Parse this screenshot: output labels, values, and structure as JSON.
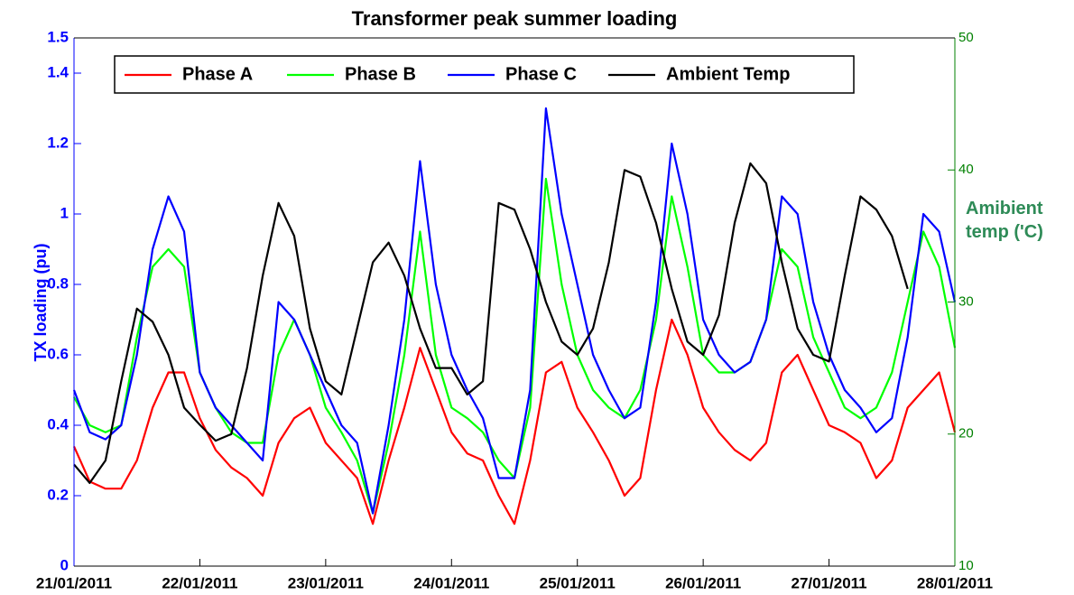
{
  "chart_data": {
    "type": "line",
    "title": "Transformer peak summer loading",
    "ylabel": "TX loading (pu)",
    "y2label": "Amibient temp ('C)",
    "x": [
      0,
      0.125,
      0.25,
      0.375,
      0.5,
      0.625,
      0.75,
      0.875,
      1,
      1.125,
      1.25,
      1.375,
      1.5,
      1.625,
      1.75,
      1.875,
      2,
      2.125,
      2.25,
      2.375,
      2.5,
      2.625,
      2.75,
      2.875,
      3,
      3.125,
      3.25,
      3.375,
      3.5,
      3.625,
      3.75,
      3.875,
      4,
      4.125,
      4.25,
      4.375,
      4.5,
      4.625,
      4.75,
      4.875,
      5,
      5.125,
      5.25,
      5.375,
      5.5,
      5.625,
      5.75,
      5.875,
      6,
      6.125,
      6.25,
      6.375,
      6.5,
      6.625,
      6.75,
      6.875,
      7
    ],
    "series": [
      {
        "name": "Phase A",
        "color": "#ff0000",
        "values": [
          0.34,
          0.24,
          0.22,
          0.22,
          0.3,
          0.45,
          0.55,
          0.55,
          0.42,
          0.33,
          0.28,
          0.25,
          0.2,
          0.35,
          0.42,
          0.45,
          0.35,
          0.3,
          0.25,
          0.12,
          0.3,
          0.45,
          0.62,
          0.5,
          0.38,
          0.32,
          0.3,
          0.2,
          0.12,
          0.3,
          0.55,
          0.58,
          0.45,
          0.38,
          0.3,
          0.2,
          0.25,
          0.5,
          0.7,
          0.6,
          0.45,
          0.38,
          0.33,
          0.3,
          0.35,
          0.55,
          0.6,
          0.5,
          0.4,
          0.38,
          0.35,
          0.25,
          0.3,
          0.45,
          0.5,
          0.55,
          0.38
        ]
      },
      {
        "name": "Phase B",
        "color": "#00ff00",
        "values": [
          0.48,
          0.4,
          0.38,
          0.4,
          0.65,
          0.85,
          0.9,
          0.85,
          0.55,
          0.45,
          0.38,
          0.35,
          0.35,
          0.6,
          0.7,
          0.6,
          0.45,
          0.38,
          0.3,
          0.15,
          0.35,
          0.6,
          0.95,
          0.6,
          0.45,
          0.42,
          0.38,
          0.3,
          0.25,
          0.45,
          1.1,
          0.8,
          0.6,
          0.5,
          0.45,
          0.42,
          0.5,
          0.7,
          1.05,
          0.85,
          0.6,
          0.55,
          0.55,
          0.58,
          0.7,
          0.9,
          0.85,
          0.65,
          0.55,
          0.45,
          0.42,
          0.45,
          0.55,
          0.75,
          0.95,
          0.85,
          0.62
        ]
      },
      {
        "name": "Phase C",
        "color": "#0000ff",
        "values": [
          0.5,
          0.38,
          0.36,
          0.4,
          0.6,
          0.9,
          1.05,
          0.95,
          0.55,
          0.45,
          0.4,
          0.35,
          0.3,
          0.75,
          0.7,
          0.6,
          0.5,
          0.4,
          0.35,
          0.15,
          0.4,
          0.7,
          1.15,
          0.8,
          0.6,
          0.5,
          0.42,
          0.25,
          0.25,
          0.5,
          1.3,
          1.0,
          0.8,
          0.6,
          0.5,
          0.42,
          0.45,
          0.75,
          1.2,
          1.0,
          0.7,
          0.6,
          0.55,
          0.58,
          0.7,
          1.05,
          1.0,
          0.75,
          0.6,
          0.5,
          0.45,
          0.38,
          0.42,
          0.65,
          1.0,
          0.95,
          0.75
        ]
      },
      {
        "name": "Ambient Temp",
        "color": "#000000",
        "axis": "y2",
        "values": [
          17.7,
          16.3,
          18,
          24,
          29.5,
          28.5,
          26,
          22,
          20.7,
          19.5,
          20,
          25,
          32,
          37.5,
          35,
          28,
          24,
          23,
          28,
          33,
          34.5,
          32,
          28,
          25,
          25,
          23,
          24,
          37.5,
          37,
          34,
          30,
          27,
          26,
          28,
          33,
          40,
          39.5,
          36,
          31,
          27,
          26,
          29,
          36,
          40.5,
          39,
          33,
          28,
          26,
          25.5,
          32,
          38,
          37,
          35,
          31,
          null,
          null,
          null
        ]
      }
    ],
    "xlim": [
      0,
      7
    ],
    "xticks": [
      {
        "value": 0,
        "label": "21/01/2011"
      },
      {
        "value": 1,
        "label": "22/01/2011"
      },
      {
        "value": 2,
        "label": "23/01/2011"
      },
      {
        "value": 3,
        "label": "24/01/2011"
      },
      {
        "value": 4,
        "label": "25/01/2011"
      },
      {
        "value": 5,
        "label": "26/01/2011"
      },
      {
        "value": 6,
        "label": "27/01/2011"
      },
      {
        "value": 7,
        "label": "28/01/2011"
      }
    ],
    "ylim": [
      0,
      1.5
    ],
    "yticks": [
      0,
      0.2,
      0.4,
      0.6,
      0.8,
      1,
      1.2,
      1.4,
      1.5
    ],
    "y2lim": [
      10,
      50
    ],
    "y2ticks": [
      10,
      20,
      30,
      40,
      50
    ],
    "legend": "top",
    "grid": false
  }
}
